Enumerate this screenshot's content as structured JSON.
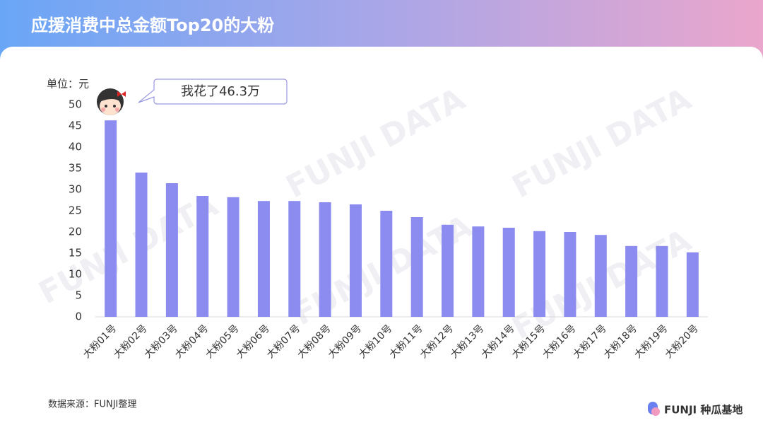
{
  "chart_data": {
    "type": "bar",
    "title": "应援消费中总金额Top20的大粉",
    "y_label": "单位：元",
    "annotation": "我花了46.3万",
    "watermark": "FUNJI DATA",
    "categories": [
      "大粉01号",
      "大粉02号",
      "大粉03号",
      "大粉04号",
      "大粉05号",
      "大粉06号",
      "大粉07号",
      "大粉08号",
      "大粉09号",
      "大粉10号",
      "大粉11号",
      "大粉12号",
      "大粉13号",
      "大粉14号",
      "大粉15号",
      "大粉16号",
      "大粉17号",
      "大粉18号",
      "大粉19号",
      "大粉20号"
    ],
    "values": [
      46.3,
      34.0,
      31.5,
      28.5,
      28.2,
      27.3,
      27.3,
      27.0,
      26.5,
      25.0,
      23.5,
      21.7,
      21.3,
      21.0,
      20.2,
      20.0,
      19.3,
      16.7,
      16.7,
      15.2
    ],
    "color": "#8b8bf0",
    "ylim": [
      0,
      50
    ],
    "yticks": [
      0,
      5,
      10,
      15,
      20,
      25,
      30,
      35,
      40,
      45,
      50
    ],
    "grid": false
  },
  "footer": {
    "source": "数据来源：FUNJI整理",
    "brand": "FUNJI 种瓜基地"
  }
}
